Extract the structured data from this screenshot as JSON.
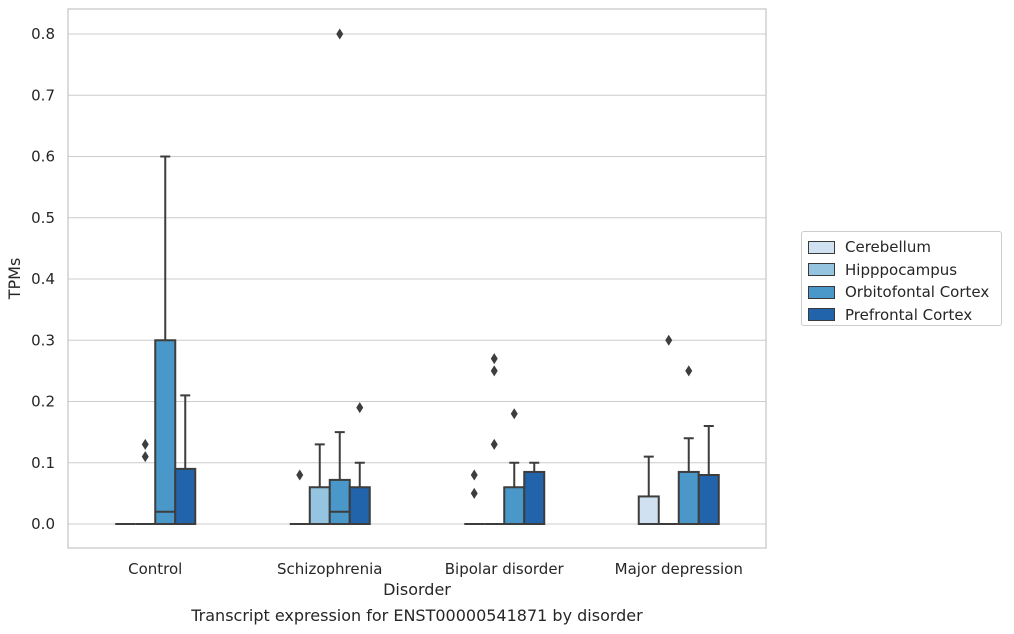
{
  "chart_data": {
    "type": "box",
    "title": "",
    "caption": "Transcript expression for ENST00000541871 by disorder",
    "xlabel": "Disorder",
    "ylabel": "TPMs",
    "ylim": [
      -0.04,
      0.84
    ],
    "yticks": [
      0.0,
      0.1,
      0.2,
      0.3,
      0.4,
      0.5,
      0.6,
      0.7,
      0.8
    ],
    "ytick_labels": [
      "0.0",
      "0.1",
      "0.2",
      "0.3",
      "0.4",
      "0.5",
      "0.6",
      "0.7",
      "0.8"
    ],
    "grid": "horizontal",
    "legend_position": "right",
    "categories": [
      "Control",
      "Schizophrenia",
      "Bipolar disorder",
      "Major depression"
    ],
    "series": [
      {
        "name": "Cerebellum",
        "color": "#d0e1f2",
        "boxes": [
          {
            "whisker_low": 0,
            "q1": 0,
            "median": 0,
            "q3": 0,
            "whisker_high": 0,
            "outliers": []
          },
          {
            "whisker_low": 0,
            "q1": 0,
            "median": 0,
            "q3": 0,
            "whisker_high": 0,
            "outliers": [
              0.08
            ]
          },
          {
            "whisker_low": 0,
            "q1": 0,
            "median": 0,
            "q3": 0,
            "whisker_high": 0,
            "outliers": [
              0.05,
              0.08
            ]
          },
          {
            "whisker_low": 0,
            "q1": 0,
            "median": 0,
            "q3": 0.045,
            "whisker_high": 0.11,
            "outliers": []
          }
        ]
      },
      {
        "name": "Hipppocampus",
        "color": "#94c4df",
        "boxes": [
          {
            "whisker_low": 0,
            "q1": 0,
            "median": 0,
            "q3": 0,
            "whisker_high": 0,
            "outliers": [
              0.11,
              0.13
            ]
          },
          {
            "whisker_low": 0,
            "q1": 0,
            "median": 0,
            "q3": 0.06,
            "whisker_high": 0.13,
            "outliers": []
          },
          {
            "whisker_low": 0,
            "q1": 0,
            "median": 0,
            "q3": 0,
            "whisker_high": 0,
            "outliers": [
              0.13,
              0.25,
              0.27
            ]
          },
          {
            "whisker_low": 0,
            "q1": 0,
            "median": 0,
            "q3": 0,
            "whisker_high": 0,
            "outliers": [
              0.3
            ]
          }
        ]
      },
      {
        "name": "Orbitofontal Cortex",
        "color": "#4a98c9",
        "boxes": [
          {
            "whisker_low": 0,
            "q1": 0,
            "median": 0.02,
            "q3": 0.3,
            "whisker_high": 0.6,
            "outliers": []
          },
          {
            "whisker_low": 0,
            "q1": 0,
            "median": 0.02,
            "q3": 0.072,
            "whisker_high": 0.15,
            "outliers": [
              0.8
            ]
          },
          {
            "whisker_low": 0,
            "q1": 0,
            "median": 0,
            "q3": 0.06,
            "whisker_high": 0.1,
            "outliers": [
              0.18
            ]
          },
          {
            "whisker_low": 0,
            "q1": 0,
            "median": 0,
            "q3": 0.085,
            "whisker_high": 0.14,
            "outliers": [
              0.25
            ]
          }
        ]
      },
      {
        "name": "Prefrontal Cortex",
        "color": "#2164ab",
        "boxes": [
          {
            "whisker_low": 0,
            "q1": 0,
            "median": 0,
            "q3": 0.09,
            "whisker_high": 0.21,
            "outliers": []
          },
          {
            "whisker_low": 0,
            "q1": 0,
            "median": 0,
            "q3": 0.06,
            "whisker_high": 0.1,
            "outliers": [
              0.19
            ]
          },
          {
            "whisker_low": 0,
            "q1": 0,
            "median": 0,
            "q3": 0.085,
            "whisker_high": 0.1,
            "outliers": []
          },
          {
            "whisker_low": 0,
            "q1": 0,
            "median": 0,
            "q3": 0.08,
            "whisker_high": 0.16,
            "outliers": []
          }
        ]
      }
    ]
  }
}
